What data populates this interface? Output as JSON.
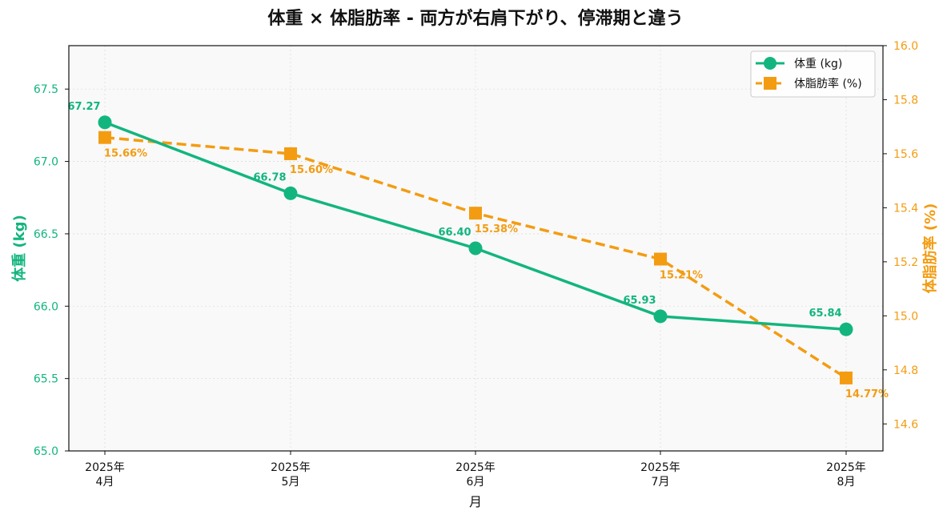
{
  "chart_data": {
    "type": "line",
    "title": "体重 × 体脂肪率 - 両方が右肩下がり、停滞期と違う",
    "xlabel": "月",
    "categories": [
      [
        "2025年",
        "4月"
      ],
      [
        "2025年",
        "5月"
      ],
      [
        "2025年",
        "6月"
      ],
      [
        "2025年",
        "7月"
      ],
      [
        "2025年",
        "8月"
      ]
    ],
    "y_left": {
      "label": "体重 (kg)",
      "ylim": [
        65.0,
        67.8
      ],
      "ticks": [
        "65.0",
        "65.5",
        "66.0",
        "66.5",
        "67.0",
        "67.5"
      ],
      "tick_values": [
        65.0,
        65.5,
        66.0,
        66.5,
        67.0,
        67.5
      ],
      "color": "#13b57f"
    },
    "y_right": {
      "label": "体脂肪率 (%)",
      "ylim": [
        14.5,
        16.0
      ],
      "ticks": [
        "14.6",
        "14.8",
        "15.0",
        "15.2",
        "15.4",
        "15.6",
        "15.8",
        "16.0"
      ],
      "tick_values": [
        14.6,
        14.8,
        15.0,
        15.2,
        15.4,
        15.6,
        15.8,
        16.0
      ],
      "color": "#f39c12"
    },
    "series": [
      {
        "name": "体重 (kg)",
        "axis": "left",
        "color": "#13b57f",
        "marker": "circle",
        "linestyle": "solid",
        "values": [
          67.27,
          66.78,
          66.4,
          65.93,
          65.84
        ],
        "labels": [
          "67.27",
          "66.78",
          "66.40",
          "65.93",
          "65.84"
        ]
      },
      {
        "name": "体脂肪率 (%)",
        "axis": "right",
        "color": "#f39c12",
        "marker": "square",
        "linestyle": "dashed",
        "values": [
          15.66,
          15.6,
          15.38,
          15.21,
          14.77
        ],
        "labels": [
          "15.66%",
          "15.60%",
          "15.38%",
          "15.21%",
          "14.77%"
        ]
      }
    ],
    "grid": true,
    "legend_position": "top-right",
    "background": "#f9f9f9"
  }
}
